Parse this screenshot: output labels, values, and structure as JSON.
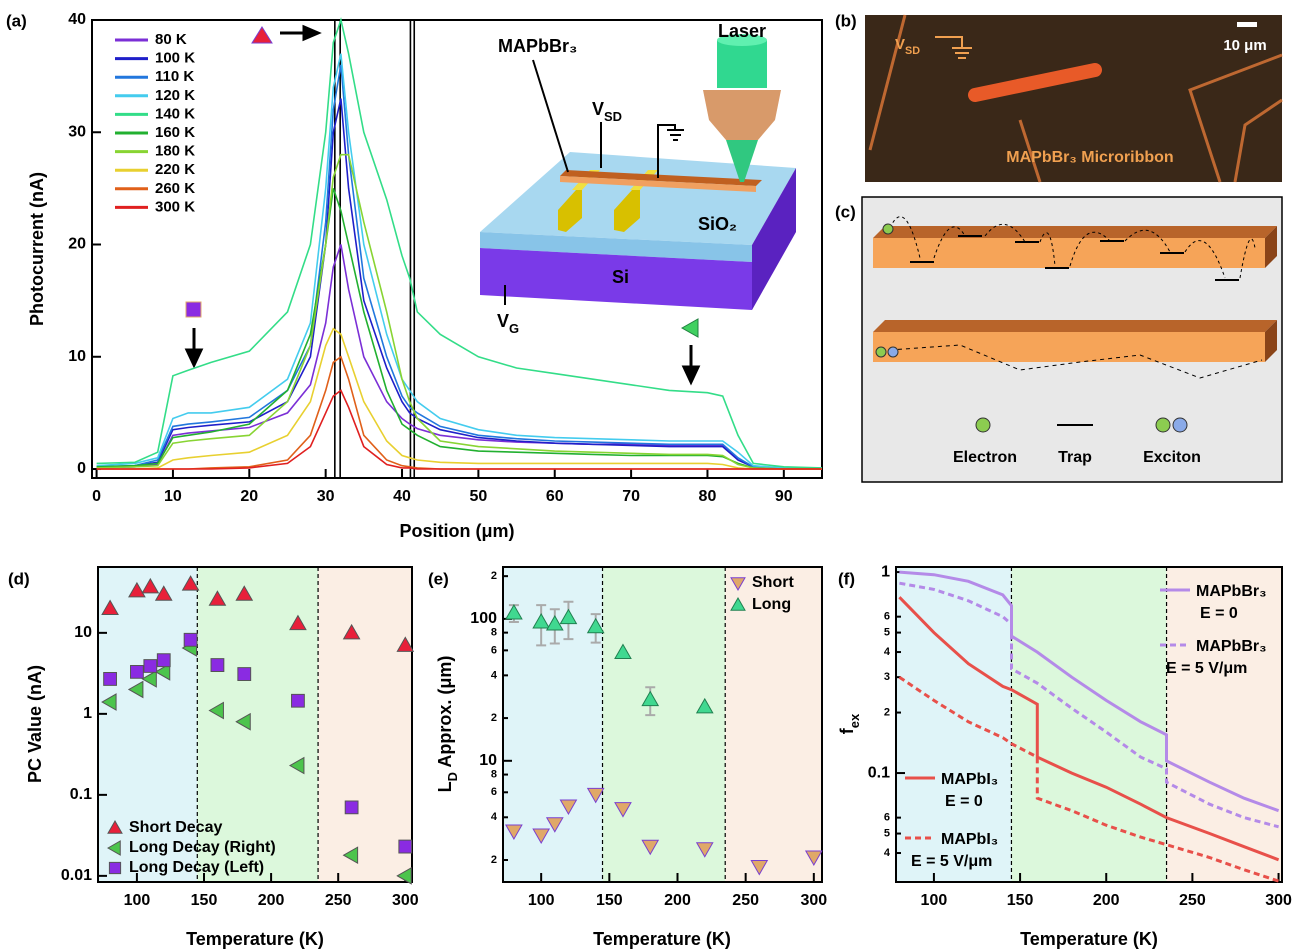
{
  "chart_data": [
    {
      "type": "line",
      "label": "(a)",
      "xlabel": "Position (μm)",
      "ylabel": "Photocurrent (nA)",
      "xlim": [
        -0.6,
        95
      ],
      "ylim": [
        -0.8,
        40
      ],
      "xticks": [
        0,
        10,
        20,
        30,
        40,
        50,
        60,
        70,
        80,
        90
      ],
      "yticks": [
        0,
        10,
        20,
        30,
        40
      ],
      "x": [
        0,
        5,
        8,
        10,
        12,
        15,
        20,
        25,
        28,
        30,
        31,
        32,
        33,
        35,
        38,
        40,
        41,
        42,
        45,
        50,
        55,
        60,
        65,
        70,
        75,
        80,
        82,
        84,
        86,
        90,
        95
      ],
      "vlines": [
        31.2,
        31.9,
        41.1,
        41.6
      ],
      "series": [
        {
          "name": "80 K",
          "color": "#7b2fd6",
          "values": [
            0.1,
            0.2,
            0.4,
            3,
            3.2,
            3.4,
            3.7,
            5,
            7.5,
            13,
            18,
            20,
            16,
            10,
            6,
            4.5,
            4,
            3.6,
            3,
            2.6,
            2.4,
            2.3,
            2.2,
            2.2,
            2.1,
            2.1,
            2.1,
            0.8,
            0.2,
            0.1,
            0
          ]
        },
        {
          "name": "100 K",
          "color": "#1f1fc9",
          "values": [
            0.2,
            0.3,
            0.6,
            3.5,
            3.7,
            3.9,
            4.2,
            6,
            10,
            20,
            30,
            33,
            25,
            15,
            9,
            6,
            5,
            4.5,
            3.5,
            2.8,
            2.5,
            2.3,
            2.2,
            2.1,
            2,
            2,
            2,
            0.8,
            0.2,
            0.1,
            0
          ]
        },
        {
          "name": "110 K",
          "color": "#2277dd",
          "values": [
            0.2,
            0.3,
            0.8,
            3.8,
            4,
            4.2,
            4.6,
            7,
            11,
            22,
            32,
            36,
            28,
            17,
            10,
            6.5,
            5.5,
            5,
            3.8,
            3,
            2.7,
            2.5,
            2.4,
            2.3,
            2.2,
            2.2,
            2.2,
            1,
            0.2,
            0.1,
            0
          ]
        },
        {
          "name": "120 K",
          "color": "#44ccee",
          "values": [
            0.3,
            0.5,
            1,
            4.5,
            5,
            5,
            5.5,
            8,
            13,
            25,
            34,
            37,
            30,
            20,
            12,
            8,
            7,
            6,
            4.5,
            3.5,
            3,
            2.8,
            2.7,
            2.6,
            2.5,
            2.5,
            2.5,
            1.5,
            0.3,
            0.1,
            0
          ]
        },
        {
          "name": "140 K",
          "color": "#33dd88",
          "values": [
            0.5,
            0.6,
            1.5,
            8.3,
            8.8,
            9.5,
            10.5,
            14,
            20,
            30,
            38,
            40,
            37,
            30,
            24,
            19,
            17,
            14,
            12,
            10,
            9,
            8.5,
            8,
            7.5,
            7,
            6.8,
            6.5,
            3,
            0.5,
            0.2,
            0.1
          ]
        },
        {
          "name": "160 K",
          "color": "#22b030",
          "values": [
            0.2,
            0.3,
            0.5,
            2.8,
            3,
            3.3,
            4,
            7,
            12,
            20,
            25,
            23,
            20,
            14,
            7,
            4,
            3.5,
            3,
            2,
            1.6,
            1.5,
            1.4,
            1.3,
            1.2,
            1.2,
            1.2,
            1.1,
            0.5,
            0.1,
            0,
            0
          ]
        },
        {
          "name": "180 K",
          "color": "#88d433",
          "values": [
            0.1,
            0.2,
            0.3,
            2.3,
            2.5,
            2.7,
            3,
            6,
            11,
            20,
            26,
            28,
            28,
            22,
            14,
            8,
            6,
            4.5,
            2.5,
            2,
            1.8,
            1.6,
            1.5,
            1.4,
            1.3,
            1.3,
            1.2,
            0.4,
            0.1,
            0,
            0
          ]
        },
        {
          "name": "220 K",
          "color": "#e8d030",
          "values": [
            0,
            0,
            0.1,
            0.8,
            1,
            1.2,
            1.5,
            3,
            6,
            11,
            12.5,
            12,
            10,
            6,
            2.5,
            1.2,
            1,
            0.8,
            0.6,
            0.5,
            0.5,
            0.5,
            0.5,
            0.5,
            0.5,
            0.5,
            0.4,
            0.1,
            0,
            0,
            0
          ]
        },
        {
          "name": "260 K",
          "color": "#e0601a",
          "values": [
            0,
            0,
            0,
            0,
            0,
            0.1,
            0.2,
            0.8,
            3,
            7,
            9.5,
            10,
            8,
            3,
            0.8,
            0.3,
            0.2,
            0.1,
            0,
            0,
            0,
            0,
            0,
            0,
            0,
            0,
            0,
            0,
            0,
            0,
            0
          ]
        },
        {
          "name": "300 K",
          "color": "#e02020",
          "values": [
            0,
            0,
            0,
            0,
            0,
            0,
            0.1,
            0.5,
            2,
            5,
            6.5,
            7,
            5.5,
            2,
            0.4,
            0.1,
            0.1,
            0,
            0,
            0,
            0,
            0,
            0,
            0,
            0,
            0,
            0,
            0,
            0,
            0,
            0
          ]
        }
      ],
      "annotations": [
        [
          {
            "text": "Laser"
          }
        ],
        [
          {
            "text": "MAPbBr₃"
          }
        ],
        [
          {
            "text": "V"
          },
          {
            "text": "SD",
            "sub": true
          }
        ],
        [
          {
            "text": "SiO₂"
          }
        ],
        [
          {
            "text": "Si"
          }
        ],
        [
          {
            "text": "V"
          },
          {
            "text": "G",
            "sub": true
          }
        ]
      ]
    },
    {
      "type": "scatter",
      "label": "(d)",
      "xlabel": "Temperature (K)",
      "ylabel": "PC Value (nA)",
      "log_y": true,
      "xlim": [
        71,
        305
      ],
      "ylim": [
        0.0084,
        65
      ],
      "xticks": [
        100,
        150,
        200,
        250,
        300
      ],
      "yticks": [
        0.01,
        0.1,
        1,
        10
      ],
      "bands": {
        "edges": [
          145,
          235
        ],
        "colors": [
          "#dff4f8",
          "#dcf8dc",
          "#fbeee4"
        ]
      },
      "x": [
        80,
        100,
        110,
        120,
        140,
        160,
        180,
        220,
        260,
        300
      ],
      "series": [
        {
          "name": "Short Decay",
          "marker": "triangle-up",
          "color": "#e8203a",
          "values": [
            20,
            33,
            37,
            30,
            40,
            26,
            30,
            13,
            10,
            7
          ]
        },
        {
          "name": "Long Decay (Right)",
          "marker": "triangle-left",
          "color": "#4cc44c",
          "values": [
            1.4,
            2.0,
            2.7,
            3.3,
            6.5,
            1.1,
            0.8,
            0.23,
            0.018,
            0.01
          ]
        },
        {
          "name": "Long Decay (Left)",
          "marker": "square",
          "color": "#8a2be2",
          "values": [
            2.7,
            3.3,
            3.9,
            4.6,
            8.2,
            4.0,
            3.1,
            1.45,
            0.07,
            0.023
          ]
        }
      ]
    },
    {
      "type": "scatter",
      "label": "(e)",
      "xlabel": "Temperature (K)",
      "ylabel": [
        {
          "text": "L"
        },
        {
          "text": "D",
          "sub": true
        },
        {
          "text": " Approx. (μm)"
        }
      ],
      "log_y": true,
      "xlim": [
        72,
        306
      ],
      "ylim": [
        1.4,
        232
      ],
      "xticks": [
        100,
        150,
        200,
        250,
        300
      ],
      "yticks": [
        2,
        4,
        6,
        8,
        10,
        {
          "value": 20,
          "label": "2"
        },
        {
          "value": 40,
          "label": "4"
        },
        {
          "value": 60,
          "label": "6"
        },
        {
          "value": 80,
          "label": "8"
        },
        100,
        {
          "value": 200,
          "label": "2"
        }
      ],
      "bands": {
        "edges": [
          145,
          235
        ],
        "colors": [
          "#dff4f8",
          "#dcf8dc",
          "#fbeee4"
        ]
      },
      "series": [
        {
          "name": "Short",
          "marker": "triangle-down",
          "color": "#e0a868",
          "edge": "#7a3fd0",
          "x": [
            80,
            100,
            110,
            120,
            140,
            160,
            180,
            220,
            260,
            300
          ],
          "values": [
            3.2,
            3.0,
            3.6,
            4.8,
            5.8,
            4.6,
            2.5,
            2.4,
            1.8,
            2.1
          ]
        },
        {
          "name": "Long",
          "marker": "triangle-up",
          "color": "#40d890",
          "edge": "#208050",
          "x": [
            80,
            100,
            110,
            120,
            140,
            160,
            180,
            220
          ],
          "values": [
            110,
            95,
            92,
            102,
            88,
            58,
            27,
            24
          ],
          "errors": [
            15,
            30,
            25,
            30,
            20,
            null,
            6,
            null
          ]
        }
      ]
    },
    {
      "type": "line",
      "label": "(f)",
      "xlabel": "Temperature (K)",
      "ylabel": [
        {
          "text": "f"
        },
        {
          "text": "ex",
          "sub": true
        }
      ],
      "log_y": true,
      "xlim": [
        78,
        302
      ],
      "ylim": [
        0.0287,
        1.06
      ],
      "xticks": [
        100,
        150,
        200,
        250,
        300
      ],
      "yticks": [
        {
          "value": 0.04,
          "label": "4"
        },
        {
          "value": 0.05,
          "label": "5"
        },
        {
          "value": 0.06,
          "label": "6"
        },
        0.1,
        {
          "value": 0.2,
          "label": "2"
        },
        {
          "value": 0.3,
          "label": "3"
        },
        {
          "value": 0.4,
          "label": "4"
        },
        {
          "value": 0.5,
          "label": "5"
        },
        {
          "value": 0.6,
          "label": "6"
        },
        1
      ],
      "bands": {
        "edges": [
          145,
          235
        ],
        "colors": [
          "#dff4f8",
          "#dcf8dc",
          "#fbeee4"
        ]
      },
      "series": [
        {
          "name": "MAPbBr₃",
          "condition": "E = 0",
          "color": "#b48ae8",
          "x": [
            80,
            100,
            120,
            140,
            145,
            145,
            160,
            180,
            200,
            220,
            235,
            235,
            260,
            280,
            300
          ],
          "values": [
            1.0,
            0.97,
            0.9,
            0.77,
            0.68,
            0.48,
            0.4,
            0.3,
            0.23,
            0.18,
            0.155,
            0.115,
            0.09,
            0.075,
            0.065
          ]
        },
        {
          "name": "MAPbBr₃",
          "condition": "E = 5 V/μm",
          "color": "#b48ae8",
          "dash": true,
          "x": [
            80,
            100,
            120,
            140,
            145,
            145,
            160,
            180,
            200,
            220,
            235,
            235,
            260,
            280,
            300
          ],
          "values": [
            0.88,
            0.82,
            0.72,
            0.6,
            0.55,
            0.33,
            0.28,
            0.21,
            0.16,
            0.12,
            0.105,
            0.09,
            0.07,
            0.06,
            0.054
          ]
        },
        {
          "name": "MAPbI₃",
          "condition": "E = 0",
          "color": "#e8504a",
          "x": [
            80,
            100,
            120,
            140,
            145,
            160,
            160,
            180,
            200,
            220,
            235,
            260,
            280,
            300
          ],
          "values": [
            0.75,
            0.5,
            0.35,
            0.27,
            0.26,
            0.22,
            0.12,
            0.1,
            0.085,
            0.07,
            0.06,
            0.05,
            0.043,
            0.037
          ]
        },
        {
          "name": "MAPbI₃",
          "condition": "E = 5 V/μm",
          "color": "#e8504a",
          "dash": true,
          "x": [
            80,
            100,
            120,
            140,
            145,
            160,
            160,
            180,
            200,
            220,
            235,
            260,
            280,
            300
          ],
          "values": [
            0.3,
            0.23,
            0.18,
            0.15,
            0.14,
            0.12,
            0.075,
            0.065,
            0.055,
            0.048,
            0.044,
            0.038,
            0.033,
            0.029
          ]
        }
      ]
    }
  ],
  "panel_b": {
    "label": "(b)",
    "vsd": [
      {
        "text": "V"
      },
      {
        "text": "SD",
        "sub": true
      }
    ],
    "scale": "10 μm",
    "caption": "MAPbBr₃  Microribbon"
  },
  "panel_c": {
    "label": "(c)",
    "legend": [
      "Electron",
      "Trap",
      "Exciton"
    ]
  }
}
